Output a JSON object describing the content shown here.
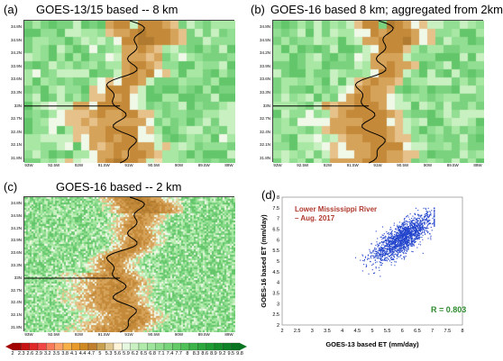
{
  "panels": [
    {
      "letter": "(a)",
      "title": "GOES-13/15 based -- 8 km"
    },
    {
      "letter": "(b)",
      "title": "GOES-16 based 8 km; aggregated from 2km"
    },
    {
      "letter": "(c)",
      "title": "GOES-16 based -- 2 km"
    },
    {
      "letter": "(d)",
      "title": ""
    }
  ],
  "map_axes": {
    "lat_labels": [
      "34.8N",
      "34.5N",
      "34.2N",
      "33.9N",
      "33.6N",
      "33.3N",
      "33N",
      "32.7N",
      "32.4N",
      "32.1N",
      "31.8N"
    ],
    "lon_labels": [
      "93W",
      "92.5W",
      "92W",
      "91.5W",
      "91W",
      "90.5W",
      "90W",
      "89.5W",
      "89W"
    ]
  },
  "colorbar": {
    "labels": [
      "2",
      "2.3",
      "2.6",
      "2.9",
      "3.2",
      "3.5",
      "3.8",
      "4.1",
      "4.4",
      "4.7",
      "5",
      "5.3",
      "5.6",
      "5.9",
      "6.2",
      "6.5",
      "6.8",
      "7.1",
      "7.4",
      "7.7",
      "8",
      "8.3",
      "8.6",
      "8.9",
      "9.2",
      "9.5",
      "9.8"
    ],
    "colors": [
      "#a50000",
      "#c81414",
      "#e02828",
      "#f04646",
      "#f87c5a",
      "#ffa468",
      "#f8b048",
      "#e89a2c",
      "#d08a24",
      "#c08030",
      "#c8a050",
      "#e0c890",
      "#fff3d8",
      "#e6f8e0",
      "#c8f0c0",
      "#b0ebac",
      "#9ee49c",
      "#8cdc8c",
      "#78d47a",
      "#64ca68",
      "#50c058",
      "#3cb44a",
      "#2ca83e",
      "#209c34",
      "#168e2c",
      "#0e8226",
      "#087620"
    ]
  },
  "chart_data": {
    "type": "scatter",
    "title": "Lower Mississippi River – Aug. 2017",
    "xlabel": "GOES-13 based ET (mm/day)",
    "ylabel": "GOES-16 based ET (mm/day)",
    "xlim": [
      2,
      8
    ],
    "ylim": [
      2,
      8
    ],
    "xticks": [
      "2",
      "2.5",
      "3",
      "3.5",
      "4",
      "4.5",
      "5",
      "5.5",
      "6",
      "6.5",
      "7",
      "7.5",
      "8"
    ],
    "yticks": [
      "2",
      "2.5",
      "3",
      "3.5",
      "4",
      "4.5",
      "5",
      "5.5",
      "6",
      "6.5",
      "7",
      "7.5",
      "8"
    ],
    "annotation": "R = 0.803",
    "point_cloud": {
      "center": [
        6.0,
        6.1
      ],
      "slope": 0.85,
      "spread_x": 0.5,
      "spread_y": 0.35,
      "count": 1800,
      "color": "#2244cc"
    }
  },
  "colors": {
    "river": "#000000",
    "dry": "#c89b4a",
    "wet": "#9be39b",
    "title_red": "#b03a2e",
    "annot_green": "#2e8b2e"
  }
}
